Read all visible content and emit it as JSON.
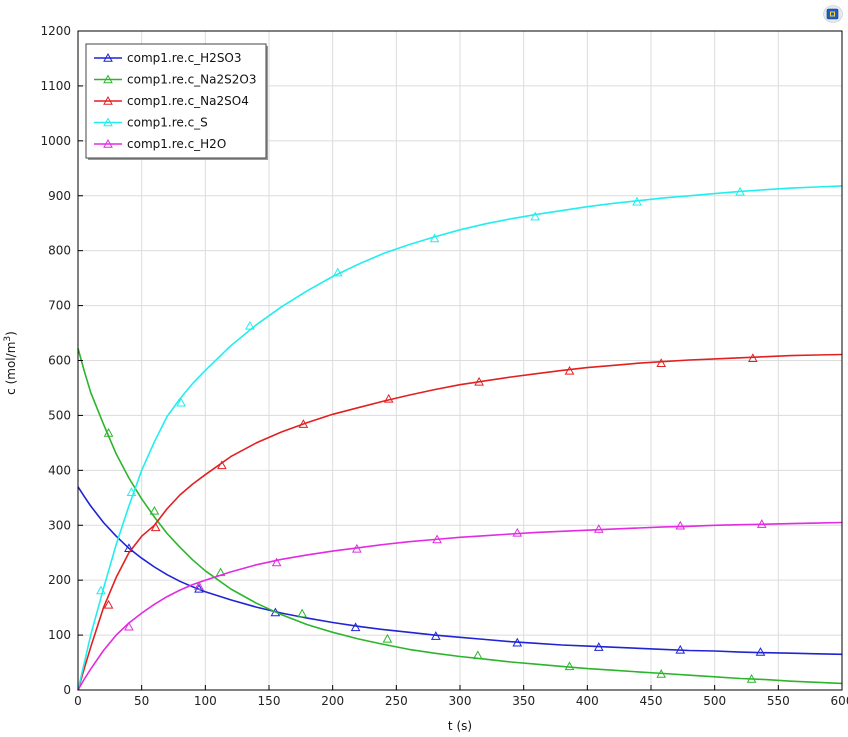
{
  "chart_data": {
    "type": "line",
    "xlabel": "t (s)",
    "ylabel_main": "c (mol/m",
    "ylabel_sup": "3",
    "ylabel_tail": ")",
    "xlim": [
      0,
      600
    ],
    "ylim": [
      0,
      1200
    ],
    "x_ticks": [
      0,
      50,
      100,
      150,
      200,
      250,
      300,
      350,
      400,
      450,
      500,
      550,
      600
    ],
    "y_ticks": [
      0,
      100,
      200,
      300,
      400,
      500,
      600,
      700,
      800,
      900,
      1000,
      1100,
      1200
    ],
    "grid": true,
    "legend_position": "top-left",
    "series": [
      {
        "name": "comp1.re.c_H2SO3",
        "color": "#1f24d4",
        "x": [
          0,
          5,
          10,
          20,
          30,
          40,
          50,
          60,
          70,
          80,
          90,
          100,
          120,
          140,
          160,
          180,
          200,
          220,
          240,
          260,
          280,
          300,
          320,
          340,
          360,
          380,
          400,
          420,
          440,
          460,
          480,
          500,
          520,
          540,
          560,
          580,
          600
        ],
        "y": [
          370,
          352,
          335,
          305,
          280,
          258,
          240,
          224,
          210,
          198,
          188,
          179,
          164,
          151,
          140,
          131,
          123,
          116,
          110,
          105,
          100,
          96,
          92,
          88,
          85,
          82,
          80,
          78,
          76,
          74,
          72,
          71,
          69,
          68,
          67,
          66,
          65
        ],
        "markers": [
          [
            40,
            258
          ],
          [
            95,
            184
          ],
          [
            155,
            141
          ],
          [
            218,
            114
          ],
          [
            281,
            98
          ],
          [
            345,
            86
          ],
          [
            409,
            78
          ],
          [
            473,
            73
          ],
          [
            536,
            69
          ]
        ]
      },
      {
        "name": "comp1.re.c_Na2S2O3",
        "color": "#2cb52c",
        "x": [
          0,
          5,
          10,
          20,
          30,
          40,
          50,
          60,
          70,
          80,
          90,
          100,
          120,
          140,
          160,
          180,
          200,
          220,
          240,
          260,
          280,
          300,
          320,
          340,
          360,
          380,
          400,
          420,
          440,
          460,
          480,
          500,
          520,
          540,
          560,
          580,
          600
        ],
        "y": [
          622,
          580,
          542,
          484,
          430,
          386,
          348,
          315,
          285,
          260,
          237,
          217,
          184,
          158,
          137,
          119,
          105,
          93,
          83,
          74,
          67,
          61,
          56,
          51,
          47,
          43,
          39,
          36,
          33,
          30,
          27,
          24,
          21,
          19,
          16,
          14,
          12
        ],
        "markers": [
          [
            24,
            468
          ],
          [
            60,
            326
          ],
          [
            112,
            214
          ],
          [
            176,
            139
          ],
          [
            243,
            93
          ],
          [
            314,
            63
          ],
          [
            386,
            43
          ],
          [
            458,
            29
          ],
          [
            529,
            20
          ]
        ]
      },
      {
        "name": "comp1.re.c_Na2SO4",
        "color": "#e32020",
        "x": [
          0,
          5,
          10,
          20,
          30,
          40,
          50,
          60,
          70,
          80,
          90,
          100,
          120,
          140,
          160,
          180,
          200,
          220,
          240,
          260,
          280,
          300,
          320,
          340,
          360,
          380,
          400,
          420,
          440,
          460,
          480,
          500,
          520,
          540,
          560,
          580,
          600
        ],
        "y": [
          0,
          40,
          78,
          150,
          205,
          250,
          280,
          300,
          330,
          355,
          375,
          392,
          425,
          450,
          470,
          487,
          502,
          514,
          526,
          537,
          547,
          556,
          563,
          570,
          576,
          582,
          587,
          591,
          595,
          598,
          601,
          603,
          605,
          607,
          609,
          610,
          611
        ],
        "markers": [
          [
            24,
            155
          ],
          [
            61,
            296
          ],
          [
            113,
            409
          ],
          [
            177,
            484
          ],
          [
            244,
            530
          ],
          [
            315,
            561
          ],
          [
            386,
            581
          ],
          [
            458,
            595
          ],
          [
            530,
            604
          ]
        ]
      },
      {
        "name": "comp1.re.c_S",
        "color": "#22eeee",
        "x": [
          0,
          5,
          10,
          20,
          30,
          40,
          50,
          60,
          70,
          80,
          90,
          100,
          120,
          140,
          160,
          180,
          200,
          220,
          240,
          260,
          280,
          300,
          320,
          340,
          360,
          380,
          400,
          420,
          440,
          460,
          480,
          500,
          520,
          540,
          560,
          580,
          600
        ],
        "y": [
          0,
          50,
          100,
          185,
          265,
          335,
          400,
          452,
          498,
          530,
          558,
          582,
          627,
          665,
          698,
          727,
          753,
          775,
          795,
          811,
          825,
          838,
          849,
          858,
          866,
          873,
          880,
          886,
          891,
          896,
          900,
          904,
          908,
          911,
          914,
          916,
          918
        ],
        "markers": [
          [
            18,
            181
          ],
          [
            42,
            360
          ],
          [
            81,
            523
          ],
          [
            135,
            663
          ],
          [
            204,
            760
          ],
          [
            280,
            822
          ],
          [
            359,
            862
          ],
          [
            439,
            889
          ],
          [
            520,
            907
          ]
        ]
      },
      {
        "name": "comp1.re.c_H2O",
        "color": "#e22be2",
        "x": [
          0,
          5,
          10,
          20,
          30,
          40,
          50,
          60,
          70,
          80,
          90,
          100,
          120,
          140,
          160,
          180,
          200,
          220,
          240,
          260,
          280,
          300,
          320,
          340,
          360,
          380,
          400,
          420,
          440,
          460,
          480,
          500,
          520,
          540,
          560,
          580,
          600
        ],
        "y": [
          0,
          20,
          38,
          72,
          100,
          122,
          140,
          156,
          170,
          182,
          192,
          200,
          215,
          228,
          238,
          246,
          253,
          259,
          265,
          270,
          274,
          278,
          281,
          284,
          287,
          289,
          291,
          293,
          295,
          297,
          298,
          300,
          301,
          302,
          303,
          304,
          305
        ],
        "markers": [
          [
            40,
            115
          ],
          [
            95,
            189
          ],
          [
            156,
            232
          ],
          [
            219,
            257
          ],
          [
            282,
            274
          ],
          [
            345,
            286
          ],
          [
            409,
            293
          ],
          [
            473,
            299
          ],
          [
            537,
            302
          ]
        ]
      }
    ]
  }
}
